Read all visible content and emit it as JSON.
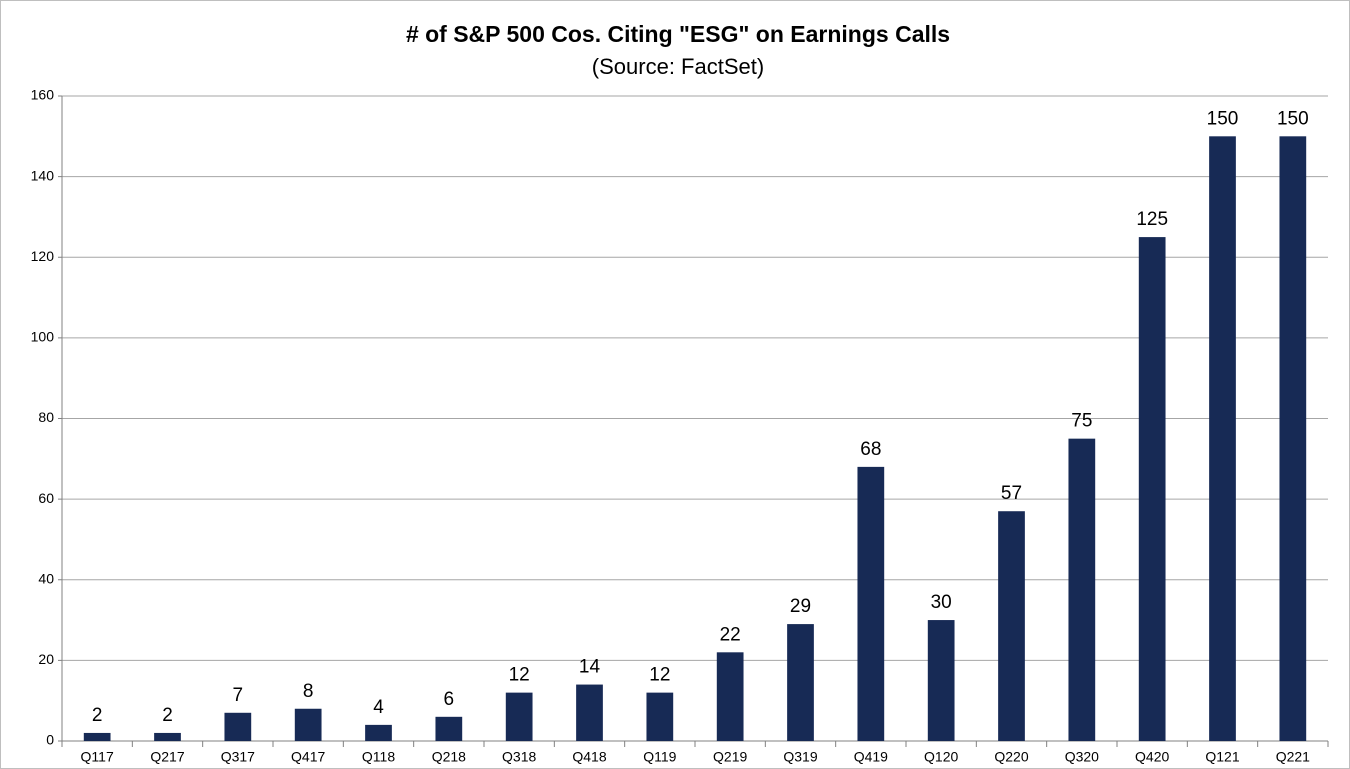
{
  "chart_data": {
    "type": "bar",
    "title": "# of S&P 500 Cos. Citing \"ESG\" on Earnings Calls",
    "subtitle": "(Source: FactSet)",
    "categories": [
      "Q117",
      "Q217",
      "Q317",
      "Q417",
      "Q118",
      "Q218",
      "Q318",
      "Q418",
      "Q119",
      "Q219",
      "Q319",
      "Q419",
      "Q120",
      "Q220",
      "Q320",
      "Q420",
      "Q121",
      "Q221"
    ],
    "values": [
      2,
      2,
      7,
      8,
      4,
      6,
      12,
      14,
      12,
      22,
      29,
      68,
      30,
      57,
      75,
      125,
      150,
      150
    ],
    "color": "#172a55",
    "ylim": [
      0,
      160
    ],
    "yticks": [
      0,
      20,
      40,
      60,
      80,
      100,
      120,
      140,
      160
    ],
    "grid": true
  }
}
